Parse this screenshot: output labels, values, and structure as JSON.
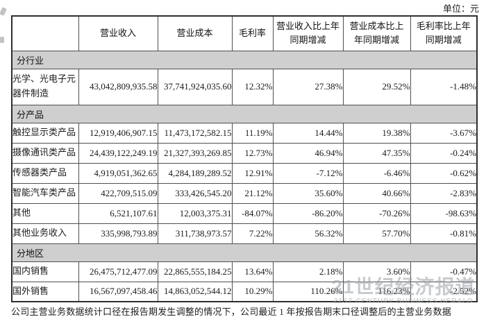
{
  "page": {
    "unit_label": "单位：元",
    "footnote": "公司主营业务数据统计口径在报告期发生调整的情况下，公司最近 1 年按报告期末口径调整后的主营业务数据"
  },
  "watermark": {
    "cn": "21世纪经济报道",
    "en": "21ST CENTURY BUSINESS HERALD"
  },
  "colors": {
    "section_bg": "#cfcfcf",
    "border": "#4f4f4f",
    "outer_border": "#2e2e2e",
    "watermark_gray": "#9ba0a5"
  },
  "table": {
    "columns": [
      "",
      "营业收入",
      "营业成本",
      "毛利率",
      "营业收入比上年同期增减",
      "营业成本比上年同期增减",
      "毛利率比上年同期增减"
    ],
    "rows": [
      {
        "type": "section",
        "label": "分行业"
      },
      {
        "type": "data",
        "tall": true,
        "label": "光学、光电子元器件制造",
        "values": [
          "43,042,809,935.58",
          "37,741,924,035.60",
          "12.32%",
          "27.38%",
          "29.52%",
          "-1.48%"
        ]
      },
      {
        "type": "section",
        "label": "分产品"
      },
      {
        "type": "data",
        "label": "触控显示类产品",
        "values": [
          "12,919,406,907.15",
          "11,473,172,582.15",
          "11.19%",
          "14.44%",
          "19.38%",
          "-3.67%"
        ]
      },
      {
        "type": "data",
        "label": "摄像通讯类产品",
        "values": [
          "24,439,122,249.19",
          "21,327,393,269.85",
          "12.73%",
          "46.94%",
          "47.35%",
          "-0.24%"
        ]
      },
      {
        "type": "data",
        "label": "传感器类产品",
        "values": [
          "4,919,051,362.65",
          "4,284,189,289.52",
          "12.91%",
          "-7.12%",
          "-6.46%",
          "-0.62%"
        ]
      },
      {
        "type": "data",
        "label": "智能汽车类产品",
        "values": [
          "422,709,515.09",
          "333,426,545.20",
          "21.12%",
          "35.60%",
          "40.66%",
          "-2.83%"
        ]
      },
      {
        "type": "data",
        "label": "其他",
        "values": [
          "6,521,107.61",
          "12,003,375.31",
          "-84.07%",
          "-86.20%",
          "-70.26%",
          "-98.63%"
        ]
      },
      {
        "type": "data",
        "label": "其他业务收入",
        "values": [
          "335,998,793.89",
          "311,738,973.57",
          "7.22%",
          "56.32%",
          "57.70%",
          "-0.81%"
        ]
      },
      {
        "type": "section",
        "label": "分地区"
      },
      {
        "type": "data",
        "label": "国内销售",
        "values": [
          "26,475,712,477.09",
          "22,865,555,184.25",
          "13.64%",
          "2.18%",
          "3.60%",
          "-0.47%"
        ]
      },
      {
        "type": "data",
        "label": "国外销售",
        "values": [
          "16,567,097,458.46",
          "14,863,052,544.12",
          "10.29%",
          "110.26%",
          "116.23%",
          "-2.52%"
        ]
      }
    ]
  }
}
